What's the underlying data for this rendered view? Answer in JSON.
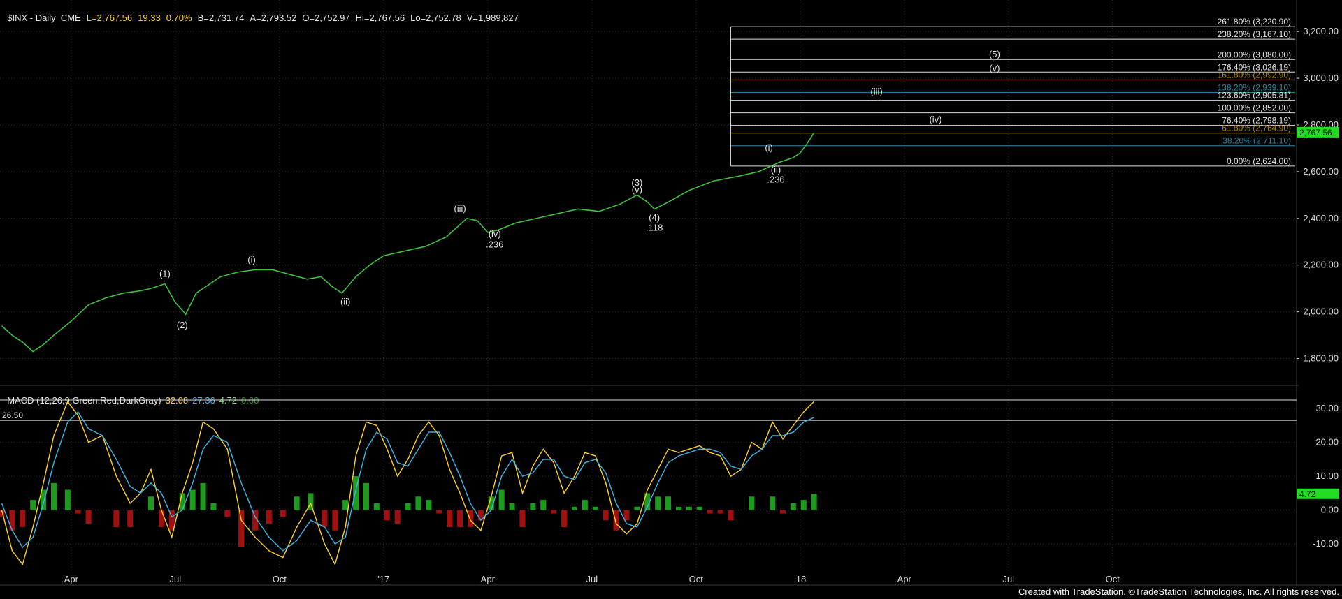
{
  "header": {
    "symbol": "$INX - Daily  CME",
    "last": "L=2,767.56",
    "change": "19.33",
    "change_pct": "0.70%",
    "bid": "B=2,731.74",
    "ask": "A=2,793.52",
    "open": "O=2,752.97",
    "high": "Hi=2,767.56",
    "low": "Lo=2,752.78",
    "volume": "V=1,989,827"
  },
  "macd_header": {
    "label": "MACD (12,26,9,Green,Red,DarkGray)",
    "v1": "32.08",
    "v2": "27.36",
    "v3": "4.72",
    "v4": "0.00"
  },
  "footer": "Created with TradeStation. ©TradeStation Technologies, Inc. All rights reserved.",
  "colors": {
    "price": "#3fc93f",
    "macd": "#ffd230",
    "signal": "#3fb6e6",
    "hist_pos": "#1e9a1e",
    "hist_neg": "#a01010",
    "fib_box": "#ffffff",
    "tag_bg": "#22dd22",
    "grid": "#303030"
  },
  "chart_data": [
    {
      "type": "line",
      "name": "price",
      "ylim": [
        1700,
        3320
      ],
      "y_ticks": [
        "1,800.00",
        "2,000.00",
        "2,200.00",
        "2,400.00",
        "2,600.00",
        "2,800.00",
        "3,000.00",
        "3,200.00"
      ],
      "y_tick_values": [
        1800,
        2000,
        2200,
        2400,
        2600,
        2800,
        3000,
        3200
      ],
      "x_ticks": [
        "Apr",
        "Jul",
        "Oct",
        "'17",
        "Apr",
        "Jul",
        "Oct",
        "'18",
        "Apr",
        "Jul",
        "Oct"
      ],
      "x_tick_months": [
        3,
        6,
        9,
        12,
        15,
        18,
        21,
        24,
        27,
        30,
        33
      ],
      "x_range_months": [
        0.95,
        38.3
      ],
      "last_value_tag": "2,767.56",
      "series": [
        {
          "x": [
            1,
            1.3,
            1.6,
            1.9,
            2.2,
            2.5,
            3,
            3.5,
            4,
            4.5,
            5,
            5.3,
            5.7,
            6,
            6.3,
            6.6,
            7,
            7.3,
            7.8,
            8.3,
            8.8,
            9.3,
            9.8,
            10.2,
            10.5,
            10.8,
            11.2,
            11.6,
            12,
            12.6,
            13.2,
            13.8,
            14.4,
            14.7,
            15.0,
            15.3,
            15.8,
            16.4,
            17,
            17.6,
            18.2,
            18.8,
            19.3,
            19.6,
            19.8,
            20.2,
            20.8,
            21.5,
            22.2,
            22.8,
            23.4,
            23.8,
            24.0,
            24.2,
            24.4
          ],
          "y": [
            1940,
            1900,
            1870,
            1830,
            1860,
            1900,
            1960,
            2030,
            2060,
            2080,
            2090,
            2100,
            2120,
            2040,
            1990,
            2080,
            2120,
            2150,
            2170,
            2180,
            2180,
            2160,
            2140,
            2150,
            2110,
            2080,
            2150,
            2200,
            2240,
            2260,
            2280,
            2320,
            2400,
            2390,
            2340,
            2350,
            2380,
            2400,
            2420,
            2440,
            2430,
            2460,
            2500,
            2470,
            2440,
            2470,
            2520,
            2560,
            2580,
            2600,
            2640,
            2660,
            2680,
            2720,
            2767.56
          ]
        }
      ],
      "fib_levels": [
        {
          "label": "261.80% (3,220.90)",
          "value": 3220.9,
          "color": "#ffffff"
        },
        {
          "label": "238.20% (3,167.10)",
          "value": 3167.1,
          "color": "#ffffff"
        },
        {
          "label": "200.00% (3,080.00)",
          "value": 3080.0,
          "color": "#ffffff"
        },
        {
          "label": "176.40% (3,026.19)",
          "value": 3026.19,
          "color": "#ffffff"
        },
        {
          "label": "161.80% (2,992.90)",
          "value": 2992.9,
          "color": "#b38a1e"
        },
        {
          "label": "138.20% (2,939.10)",
          "value": 2939.1,
          "color": "#2e8aa8"
        },
        {
          "label": "123.60% (2,905.81)",
          "value": 2905.81,
          "color": "#ffffff"
        },
        {
          "label": "100.00% (2,852.00)",
          "value": 2852.0,
          "color": "#ffffff"
        },
        {
          "label": "76.40% (2,798.19)",
          "value": 2798.19,
          "color": "#ffffff"
        },
        {
          "label": "61.80% (2,764.90)",
          "value": 2764.9,
          "color": "#b38a1e"
        },
        {
          "label": "38.20% (2,711.10)",
          "value": 2711.1,
          "color": "#2e8aa8"
        },
        {
          "label": "0.00% (2,624.00)",
          "value": 2624.0,
          "color": "#ffffff"
        }
      ],
      "fib_x_start_month": 22.0,
      "annotations": [
        {
          "text": "(1)",
          "x": 5.7,
          "y": 2150
        },
        {
          "text": "(2)",
          "x": 6.2,
          "y": 1930
        },
        {
          "text": "(i)",
          "x": 8.2,
          "y": 2210
        },
        {
          "text": "(ii)",
          "x": 10.9,
          "y": 2030
        },
        {
          "text": "(iii)",
          "x": 14.2,
          "y": 2430
        },
        {
          "text": "(iv)",
          "x": 15.2,
          "y": 2320
        },
        {
          "text": ".236",
          "x": 15.2,
          "y": 2275
        },
        {
          "text": "(3)",
          "x": 19.3,
          "y": 2540
        },
        {
          "text": "(v)",
          "x": 19.3,
          "y": 2510
        },
        {
          "text": "(4)",
          "x": 19.8,
          "y": 2390
        },
        {
          "text": ".118",
          "x": 19.8,
          "y": 2347
        },
        {
          "text": "(i)",
          "x": 23.1,
          "y": 2690
        },
        {
          "text": "(ii)",
          "x": 23.3,
          "y": 2595
        },
        {
          "text": ".236",
          "x": 23.3,
          "y": 2553
        },
        {
          "text": "(iii)",
          "x": 26.2,
          "y": 2930
        },
        {
          "text": "(iv)",
          "x": 27.9,
          "y": 2810
        },
        {
          "text": "(5)",
          "x": 29.6,
          "y": 3090
        },
        {
          "text": "(v)",
          "x": 29.6,
          "y": 3030
        }
      ]
    },
    {
      "type": "line",
      "name": "MACD",
      "ylim": [
        -18,
        36
      ],
      "y_ticks": [
        "-10.00",
        "0.00",
        "10.00",
        "20.00",
        "30.00"
      ],
      "y_tick_values": [
        -10,
        0,
        10,
        20,
        30
      ],
      "reference_lines": [
        {
          "label": "26.50",
          "value": 26.5
        },
        {
          "label": "",
          "value": 32.5
        }
      ],
      "last_value_tag": "4.72",
      "series": [
        {
          "name": "MACD",
          "x": [
            1,
            1.3,
            1.6,
            1.9,
            2.2,
            2.5,
            2.9,
            3.2,
            3.5,
            3.9,
            4.3,
            4.7,
            5.0,
            5.3,
            5.6,
            5.9,
            6.2,
            6.5,
            6.8,
            7.1,
            7.5,
            7.9,
            8.3,
            8.7,
            9.1,
            9.5,
            9.9,
            10.3,
            10.6,
            10.9,
            11.2,
            11.5,
            11.8,
            12.1,
            12.4,
            12.7,
            13.0,
            13.3,
            13.6,
            13.9,
            14.2,
            14.5,
            14.8,
            15.1,
            15.4,
            15.7,
            16.0,
            16.3,
            16.6,
            16.9,
            17.2,
            17.5,
            17.8,
            18.1,
            18.4,
            18.7,
            19.0,
            19.3,
            19.6,
            19.9,
            20.2,
            20.5,
            20.8,
            21.1,
            21.4,
            21.7,
            22.0,
            22.3,
            22.6,
            22.9,
            23.2,
            23.5,
            23.8,
            24.1,
            24.4
          ],
          "values": [
            0,
            -12,
            -16,
            -5,
            8,
            22,
            32,
            28,
            20,
            22,
            10,
            2,
            5,
            12,
            0,
            -8,
            5,
            14,
            26,
            24,
            18,
            -3,
            -8,
            -12,
            -14,
            -5,
            2,
            -10,
            -16,
            -5,
            16,
            26,
            25,
            18,
            10,
            15,
            22,
            26,
            22,
            12,
            5,
            -3,
            -6,
            4,
            16,
            17,
            5,
            13,
            18,
            14,
            5,
            10,
            17,
            16,
            8,
            -4,
            -7,
            -4,
            6,
            12,
            18,
            17,
            18,
            19,
            17,
            16,
            10,
            12,
            20,
            18,
            26,
            21,
            25,
            29,
            32.08
          ]
        },
        {
          "name": "Signal",
          "x": [
            1,
            1.3,
            1.6,
            1.9,
            2.2,
            2.5,
            2.9,
            3.2,
            3.5,
            3.9,
            4.3,
            4.7,
            5.0,
            5.3,
            5.6,
            5.9,
            6.2,
            6.5,
            6.8,
            7.1,
            7.5,
            7.9,
            8.3,
            8.7,
            9.1,
            9.5,
            9.9,
            10.3,
            10.6,
            10.9,
            11.2,
            11.5,
            11.8,
            12.1,
            12.4,
            12.7,
            13.0,
            13.3,
            13.6,
            13.9,
            14.2,
            14.5,
            14.8,
            15.1,
            15.4,
            15.7,
            16.0,
            16.3,
            16.6,
            16.9,
            17.2,
            17.5,
            17.8,
            18.1,
            18.4,
            18.7,
            19.0,
            19.3,
            19.6,
            19.9,
            20.2,
            20.5,
            20.8,
            21.1,
            21.4,
            21.7,
            22.0,
            22.3,
            22.6,
            22.9,
            23.2,
            23.5,
            23.8,
            24.1,
            24.4
          ],
          "values": [
            2,
            -6,
            -11,
            -8,
            2,
            14,
            26,
            29,
            24,
            22,
            15,
            7,
            5,
            8,
            5,
            -2,
            0,
            8,
            18,
            22,
            20,
            8,
            -2,
            -8,
            -12,
            -9,
            -3,
            -5,
            -10,
            -8,
            6,
            18,
            23,
            21,
            14,
            13,
            18,
            23,
            23,
            17,
            10,
            2,
            -3,
            0,
            10,
            15,
            10,
            11,
            15,
            15,
            10,
            9,
            14,
            15,
            11,
            2,
            -4,
            -5,
            1,
            8,
            14,
            16,
            17,
            18,
            18,
            17,
            13,
            12,
            16,
            18,
            22,
            22,
            23,
            26,
            27.36
          ]
        }
      ],
      "histogram": {
        "x": [
          1,
          1.3,
          1.6,
          1.9,
          2.2,
          2.5,
          2.9,
          3.2,
          3.5,
          3.9,
          4.3,
          4.7,
          5.0,
          5.3,
          5.6,
          5.9,
          6.2,
          6.5,
          6.8,
          7.1,
          7.5,
          7.9,
          8.3,
          8.7,
          9.1,
          9.5,
          9.9,
          10.3,
          10.6,
          10.9,
          11.2,
          11.5,
          11.8,
          12.1,
          12.4,
          12.7,
          13.0,
          13.3,
          13.6,
          13.9,
          14.2,
          14.5,
          14.8,
          15.1,
          15.4,
          15.7,
          16.0,
          16.3,
          16.6,
          16.9,
          17.2,
          17.5,
          17.8,
          18.1,
          18.4,
          18.7,
          19.0,
          19.3,
          19.6,
          19.9,
          20.2,
          20.5,
          20.8,
          21.1,
          21.4,
          21.7,
          22.0,
          22.3,
          22.6,
          22.9,
          23.2,
          23.5,
          23.8,
          24.1,
          24.4
        ],
        "values": [
          -2,
          -6,
          -5,
          3,
          6,
          8,
          6,
          -1,
          -4,
          0,
          -5,
          -5,
          0,
          4,
          -5,
          -6,
          5,
          6,
          8,
          2,
          -2,
          -11,
          -6,
          -4,
          -2,
          4,
          5,
          -5,
          -6,
          3,
          10,
          8,
          2,
          -3,
          -4,
          2,
          4,
          3,
          -1,
          -5,
          -5,
          -5,
          -3,
          4,
          6,
          2,
          -5,
          2,
          3,
          -1,
          -5,
          1,
          3,
          1,
          -3,
          -6,
          -3,
          1,
          5,
          4,
          4,
          1,
          1,
          1,
          -1,
          -1,
          -3,
          0,
          4,
          0,
          4,
          -1,
          2,
          3,
          4.72
        ]
      },
      "x_ticks": [
        "Apr",
        "Jul",
        "Oct",
        "'17",
        "Apr",
        "Jul",
        "Oct",
        "'18",
        "Apr",
        "Jul",
        "Oct"
      ]
    }
  ]
}
